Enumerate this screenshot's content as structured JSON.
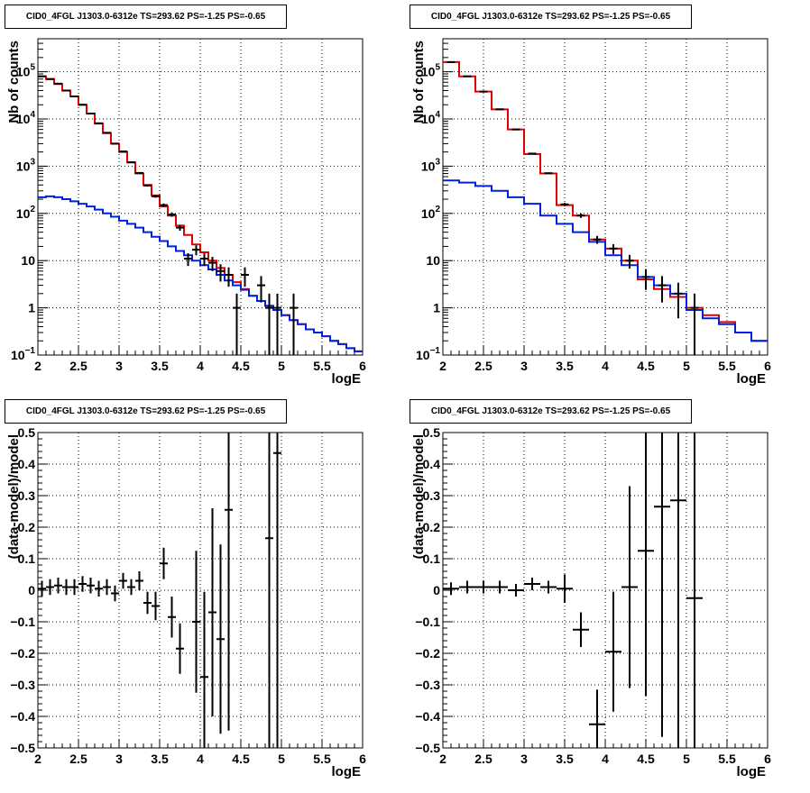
{
  "colors": {
    "data": "#000000",
    "total_model": "#e00000",
    "component": "#0020e0",
    "grid": "#000000"
  },
  "chart_data": [
    {
      "id": "top-left",
      "type": "line",
      "title": "CID0_4FGL J1303.0-6312e TS=293.62 PS=-1.25 PS=-0.65",
      "xlabel": "logE",
      "ylabel": "Nb of counts",
      "xlim": [
        2,
        6
      ],
      "ylim": [
        0.1,
        500000
      ],
      "yscale": "log",
      "grid": true,
      "x_ticks": [
        "2",
        "2.5",
        "3",
        "3.5",
        "4",
        "4.5",
        "5",
        "5.5",
        "6"
      ],
      "y_ticks": [
        {
          "value": 0.1,
          "base": "10",
          "exp": "−1"
        },
        {
          "value": 1,
          "label": "1"
        },
        {
          "value": 10,
          "label": "10"
        },
        {
          "value": 100,
          "base": "10",
          "exp": "2"
        },
        {
          "value": 1000,
          "base": "10",
          "exp": "3"
        },
        {
          "value": 10000,
          "base": "10",
          "exp": "4"
        },
        {
          "value": 100000,
          "base": "10",
          "exp": "5"
        }
      ],
      "series": [
        {
          "role": "total_model",
          "kind": "step",
          "edges": [
            2.0,
            2.1,
            2.2,
            2.3,
            2.4,
            2.5,
            2.6,
            2.7,
            2.8,
            2.9,
            3.0,
            3.1,
            3.2,
            3.3,
            3.4,
            3.5,
            3.6,
            3.7,
            3.8,
            3.9,
            4.0,
            4.1,
            4.2,
            4.3,
            4.4,
            4.5,
            4.6,
            4.7,
            4.8,
            4.9,
            5.0,
            5.1,
            5.2,
            5.3,
            5.4,
            5.5,
            5.6,
            5.7,
            5.8,
            5.9,
            6.0
          ],
          "values": [
            80000,
            70000,
            55000,
            40000,
            30000,
            20000,
            13000,
            8000,
            5000,
            3000,
            2000,
            1200,
            700,
            400,
            240,
            140,
            90,
            55,
            35,
            22,
            15,
            10,
            7,
            5,
            3.5,
            2.5,
            1.8,
            1.4,
            1.1,
            0.9,
            0.7,
            0.55,
            0.45,
            0.35,
            0.3,
            0.25,
            0.2,
            0.17,
            0.14,
            0.12
          ]
        },
        {
          "role": "component",
          "kind": "step",
          "edges": [
            2.0,
            2.1,
            2.2,
            2.3,
            2.4,
            2.5,
            2.6,
            2.7,
            2.8,
            2.9,
            3.0,
            3.1,
            3.2,
            3.3,
            3.4,
            3.5,
            3.6,
            3.7,
            3.8,
            3.9,
            4.0,
            4.1,
            4.2,
            4.3,
            4.4,
            4.5,
            4.6,
            4.7,
            4.8,
            4.9,
            5.0,
            5.1,
            5.2,
            5.3,
            5.4,
            5.5,
            5.6,
            5.7,
            5.8,
            5.9,
            6.0
          ],
          "values": [
            220,
            230,
            220,
            200,
            180,
            160,
            140,
            120,
            100,
            85,
            70,
            60,
            50,
            40,
            32,
            26,
            20,
            16,
            13,
            10,
            8,
            6.5,
            5,
            3.8,
            3,
            2.4,
            1.8,
            1.4,
            1.1,
            0.9,
            0.7,
            0.55,
            0.45,
            0.35,
            0.3,
            0.25,
            0.2,
            0.17,
            0.14,
            0.12
          ]
        },
        {
          "role": "data",
          "kind": "points",
          "x": [
            2.05,
            2.15,
            2.25,
            2.35,
            2.45,
            2.55,
            2.65,
            2.75,
            2.85,
            2.95,
            3.05,
            3.15,
            3.25,
            3.35,
            3.45,
            3.55,
            3.65,
            3.75,
            3.85,
            3.95,
            4.05,
            4.15,
            4.25,
            4.35,
            4.45,
            4.55,
            4.75,
            4.85,
            4.95,
            5.15
          ],
          "y": [
            80000,
            70000,
            56000,
            40000,
            30000,
            20000,
            13000,
            8100,
            5100,
            3000,
            2050,
            1210,
            720,
            390,
            230,
            150,
            95,
            50,
            11,
            17,
            11,
            9,
            6,
            5,
            1,
            5,
            3,
            1,
            1,
            1
          ],
          "yerr": [
            280,
            260,
            240,
            200,
            170,
            140,
            115,
            90,
            71,
            55,
            45,
            35,
            27,
            20,
            15,
            12,
            10,
            7,
            3.3,
            4,
            3.3,
            3,
            2.4,
            2.2,
            1,
            2.2,
            1.7,
            1,
            1,
            1
          ]
        }
      ]
    },
    {
      "id": "top-right",
      "type": "line",
      "title": "CID0_4FGL J1303.0-6312e TS=293.62 PS=-1.25 PS=-0.65",
      "xlabel": "logE",
      "ylabel": "Nb of counts",
      "xlim": [
        2,
        6
      ],
      "ylim": [
        0.1,
        500000
      ],
      "yscale": "log",
      "grid": true,
      "x_ticks": [
        "2",
        "2.5",
        "3",
        "3.5",
        "4",
        "4.5",
        "5",
        "5.5",
        "6"
      ],
      "y_ticks": [
        {
          "value": 0.1,
          "base": "10",
          "exp": "−1"
        },
        {
          "value": 1,
          "label": "1"
        },
        {
          "value": 10,
          "label": "10"
        },
        {
          "value": 100,
          "base": "10",
          "exp": "2"
        },
        {
          "value": 1000,
          "base": "10",
          "exp": "3"
        },
        {
          "value": 10000,
          "base": "10",
          "exp": "4"
        },
        {
          "value": 100000,
          "base": "10",
          "exp": "5"
        }
      ],
      "series": [
        {
          "role": "total_model",
          "kind": "step",
          "edges": [
            2.0,
            2.2,
            2.4,
            2.6,
            2.8,
            3.0,
            3.2,
            3.4,
            3.6,
            3.8,
            4.0,
            4.2,
            4.4,
            4.6,
            4.8,
            5.0,
            5.2,
            5.4,
            5.6,
            5.8,
            6.0
          ],
          "values": [
            160000,
            80000,
            38000,
            16000,
            6000,
            1800,
            700,
            150,
            90,
            28,
            18,
            10,
            4,
            2.5,
            1.7,
            1.0,
            0.7,
            0.5,
            0.3,
            0.2
          ]
        },
        {
          "role": "component",
          "kind": "step",
          "edges": [
            2.0,
            2.2,
            2.4,
            2.6,
            2.8,
            3.0,
            3.2,
            3.4,
            3.6,
            3.8,
            4.0,
            4.2,
            4.4,
            4.6,
            4.8,
            5.0,
            5.2,
            5.4,
            5.6,
            5.8,
            6.0
          ],
          "values": [
            500,
            450,
            380,
            300,
            220,
            160,
            90,
            60,
            40,
            25,
            13,
            8,
            4.5,
            3,
            2,
            0.9,
            0.6,
            0.45,
            0.3,
            0.2
          ]
        },
        {
          "role": "data",
          "kind": "points",
          "x": [
            2.1,
            2.3,
            2.5,
            2.7,
            2.9,
            3.1,
            3.3,
            3.5,
            3.7,
            3.9,
            4.1,
            4.3,
            4.5,
            4.7,
            4.9,
            5.1
          ],
          "y": [
            160000,
            80000,
            38000,
            16000,
            6000,
            1850,
            710,
            155,
            90,
            28,
            18,
            10,
            4.5,
            3,
            2,
            1
          ],
          "yerr": [
            400,
            280,
            195,
            126,
            77,
            43,
            27,
            12,
            9.5,
            5.3,
            4.2,
            3.2,
            2.1,
            1.7,
            1.4,
            1
          ]
        }
      ]
    },
    {
      "id": "bottom-left",
      "type": "scatter",
      "title": "CID0_4FGL J1303.0-6312e TS=293.62 PS=-1.25 PS=-0.65",
      "xlabel": "logE",
      "ylabel": "(data-model)/model",
      "xlim": [
        2,
        6
      ],
      "ylim": [
        -0.5,
        0.5
      ],
      "yscale": "linear",
      "grid": true,
      "x_ticks": [
        "2",
        "2.5",
        "3",
        "3.5",
        "4",
        "4.5",
        "5",
        "5.5",
        "6"
      ],
      "y_ticks": [
        {
          "value": -0.5,
          "label": "−0.5"
        },
        {
          "value": -0.4,
          "label": "−0.4"
        },
        {
          "value": -0.3,
          "label": "−0.3"
        },
        {
          "value": -0.2,
          "label": "−0.2"
        },
        {
          "value": -0.1,
          "label": "−0.1"
        },
        {
          "value": 0,
          "label": "0"
        },
        {
          "value": 0.1,
          "label": "0.1"
        },
        {
          "value": 0.2,
          "label": "0.2"
        },
        {
          "value": 0.3,
          "label": "0.3"
        },
        {
          "value": 0.4,
          "label": "0.4"
        },
        {
          "value": 0.5,
          "label": "0.5"
        }
      ],
      "series": [
        {
          "role": "data",
          "kind": "points",
          "xhalf": 0.05,
          "x": [
            2.05,
            2.15,
            2.25,
            2.35,
            2.45,
            2.55,
            2.65,
            2.75,
            2.85,
            2.95,
            3.05,
            3.15,
            3.25,
            3.35,
            3.45,
            3.55,
            3.65,
            3.75,
            3.95,
            4.05,
            4.15,
            4.25,
            4.35,
            4.85,
            4.95
          ],
          "y": [
            0.005,
            0.01,
            0.015,
            0.01,
            0.01,
            0.02,
            0.015,
            0.005,
            0.01,
            -0.01,
            0.03,
            0.01,
            0.03,
            -0.04,
            -0.05,
            0.085,
            -0.085,
            -0.185,
            -0.1,
            -0.275,
            -0.07,
            -0.155,
            0.255,
            0.165,
            0.435
          ],
          "yerr": [
            0.025,
            0.025,
            0.025,
            0.025,
            0.025,
            0.025,
            0.025,
            0.025,
            0.025,
            0.025,
            0.025,
            0.025,
            0.03,
            0.035,
            0.045,
            0.05,
            0.065,
            0.08,
            0.225,
            0.27,
            0.33,
            0.3,
            0.7,
            1.0,
            1.0
          ]
        }
      ]
    },
    {
      "id": "bottom-right",
      "type": "scatter",
      "title": "CID0_4FGL J1303.0-6312e TS=293.62 PS=-1.25 PS=-0.65",
      "xlabel": "logE",
      "ylabel": "(data-model)/model",
      "xlim": [
        2,
        6
      ],
      "ylim": [
        -0.5,
        0.5
      ],
      "yscale": "linear",
      "grid": true,
      "x_ticks": [
        "2",
        "2.5",
        "3",
        "3.5",
        "4",
        "4.5",
        "5",
        "5.5",
        "6"
      ],
      "y_ticks": [
        {
          "value": -0.5,
          "label": "−0.5"
        },
        {
          "value": -0.4,
          "label": "−0.4"
        },
        {
          "value": -0.3,
          "label": "−0.3"
        },
        {
          "value": -0.2,
          "label": "−0.2"
        },
        {
          "value": -0.1,
          "label": "−0.1"
        },
        {
          "value": 0,
          "label": "0"
        },
        {
          "value": 0.1,
          "label": "0.1"
        },
        {
          "value": 0.2,
          "label": "0.2"
        },
        {
          "value": 0.3,
          "label": "0.3"
        },
        {
          "value": 0.4,
          "label": "0.4"
        },
        {
          "value": 0.5,
          "label": "0.5"
        }
      ],
      "series": [
        {
          "role": "data",
          "kind": "points",
          "xhalf": 0.1,
          "x": [
            2.1,
            2.3,
            2.5,
            2.7,
            2.9,
            3.1,
            3.3,
            3.5,
            3.7,
            3.9,
            4.1,
            4.3,
            4.5,
            4.7,
            4.9,
            5.1
          ],
          "y": [
            0.005,
            0.01,
            0.01,
            0.01,
            0.0,
            0.02,
            0.01,
            0.005,
            -0.125,
            -0.425,
            -0.195,
            0.01,
            0.125,
            0.265,
            0.285,
            -0.025
          ],
          "yerr": [
            0.02,
            0.02,
            0.02,
            0.02,
            0.02,
            0.02,
            0.02,
            0.045,
            0.055,
            0.11,
            0.19,
            0.32,
            0.46,
            0.73,
            0.9,
            1.0
          ]
        }
      ]
    }
  ]
}
